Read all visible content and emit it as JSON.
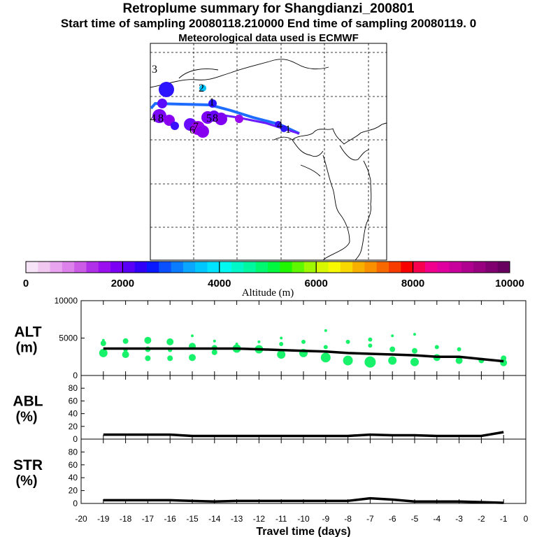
{
  "title": "Retroplume summary for Shangdianzi_200801",
  "subtitle": "Start time of sampling 20080118.210000     End time of sampling 20080119.     0",
  "met_note": "Meteorological data used is ECMWF",
  "map": {
    "labels": [
      "3",
      "2",
      "1",
      "4",
      "8",
      "6",
      "5",
      "7",
      "8",
      "4",
      "1"
    ],
    "track_colors": [
      "#1e6cff",
      "#6a1bff"
    ]
  },
  "colorbar": {
    "label": "Altitude (m)",
    "ticks": [
      "0",
      "2000",
      "4000",
      "6000",
      "8000",
      "10000"
    ],
    "colors": [
      "#f7e3f7",
      "#f0c8f0",
      "#e8a4ee",
      "#dc82ea",
      "#cc5ce6",
      "#b030ea",
      "#9b10ee",
      "#7c00f4",
      "#5a00f6",
      "#3000f8",
      "#0a18ff",
      "#0a50ff",
      "#0a7cff",
      "#0aa6ff",
      "#00c8ff",
      "#00e4ff",
      "#00f8f0",
      "#00f8c8",
      "#00f8a0",
      "#00f870",
      "#00f840",
      "#20f800",
      "#60f800",
      "#a0f800",
      "#d8f800",
      "#f8f800",
      "#f8d800",
      "#f8b000",
      "#f89000",
      "#f86800",
      "#f83c00",
      "#f80000",
      "#f80050",
      "#f0008c",
      "#e000a0",
      "#c8009c",
      "#b00090",
      "#980080",
      "#800070",
      "#680060"
    ]
  },
  "chart_data": [
    {
      "type": "line",
      "name": "ALT",
      "ylabel_line1": "ALT",
      "ylabel_line2": "(m)",
      "ylim": [
        0,
        10000
      ],
      "yticks": [
        "0",
        "5000",
        "10000"
      ],
      "xlim": [
        -20,
        0
      ],
      "x": [
        -19,
        -18,
        -17,
        -16,
        -15,
        -14,
        -13,
        -12,
        -11,
        -10,
        -9,
        -8,
        -7,
        -6,
        -5,
        -4,
        -3,
        -2,
        -1
      ],
      "values": [
        3600,
        3600,
        3600,
        3600,
        3600,
        3600,
        3600,
        3500,
        3400,
        3300,
        3200,
        3000,
        2900,
        2800,
        2700,
        2500,
        2500,
        2200,
        1900
      ],
      "scatter": {
        "color": "#18f26a",
        "points": [
          [
            -19,
            4300,
            4
          ],
          [
            -19,
            3000,
            6
          ],
          [
            -19,
            4700,
            2
          ],
          [
            -18,
            4600,
            4
          ],
          [
            -18,
            2800,
            5
          ],
          [
            -18,
            3400,
            3
          ],
          [
            -17,
            4700,
            5
          ],
          [
            -17,
            2300,
            4
          ],
          [
            -17,
            3500,
            4
          ],
          [
            -16,
            4500,
            5
          ],
          [
            -16,
            2300,
            4
          ],
          [
            -16,
            3400,
            3
          ],
          [
            -15,
            3900,
            5
          ],
          [
            -15,
            2400,
            5
          ],
          [
            -15,
            5300,
            2
          ],
          [
            -14,
            3700,
            4
          ],
          [
            -14,
            3100,
            4
          ],
          [
            -14,
            4600,
            2
          ],
          [
            -13,
            3600,
            6
          ],
          [
            -13,
            4200,
            2
          ],
          [
            -12,
            3500,
            6
          ],
          [
            -12,
            4500,
            2
          ],
          [
            -11,
            2800,
            6
          ],
          [
            -11,
            4200,
            3
          ],
          [
            -11,
            5000,
            2
          ],
          [
            -10,
            3000,
            6
          ],
          [
            -10,
            4500,
            3
          ],
          [
            -9,
            2400,
            7
          ],
          [
            -9,
            3800,
            3
          ],
          [
            -9,
            6000,
            2
          ],
          [
            -8,
            2000,
            7
          ],
          [
            -8,
            4500,
            3
          ],
          [
            -7,
            1800,
            8
          ],
          [
            -7,
            4800,
            3
          ],
          [
            -7,
            4000,
            3
          ],
          [
            -6,
            2000,
            6
          ],
          [
            -6,
            3500,
            4
          ],
          [
            -6,
            5300,
            2
          ],
          [
            -5,
            1800,
            6
          ],
          [
            -5,
            3300,
            4
          ],
          [
            -5,
            5500,
            2
          ],
          [
            -4,
            2400,
            5
          ],
          [
            -4,
            3800,
            3
          ],
          [
            -3,
            2000,
            5
          ],
          [
            -3,
            3500,
            3
          ],
          [
            -2,
            2000,
            4
          ],
          [
            -1,
            1700,
            5
          ],
          [
            -1,
            2300,
            4
          ]
        ]
      }
    },
    {
      "type": "line",
      "name": "ABL",
      "ylabel_line1": "ABL",
      "ylabel_line2": "(%)",
      "ylim": [
        0,
        100
      ],
      "yticks": [
        "0",
        "20",
        "40",
        "60",
        "80"
      ],
      "xlim": [
        -20,
        0
      ],
      "x": [
        -19,
        -18,
        -17,
        -16,
        -15,
        -14,
        -13,
        -12,
        -11,
        -10,
        -9,
        -8,
        -7,
        -6,
        -5,
        -4,
        -3,
        -2,
        -1
      ],
      "values": [
        7,
        7,
        7,
        7,
        5,
        5,
        5,
        5,
        5,
        5,
        5,
        5,
        7,
        6,
        6,
        5,
        5,
        5,
        11
      ]
    },
    {
      "type": "line",
      "name": "STR",
      "ylabel_line1": "STR",
      "ylabel_line2": "(%)",
      "ylim": [
        0,
        100
      ],
      "yticks": [
        "0",
        "20",
        "40",
        "60",
        "80"
      ],
      "xlim": [
        -20,
        0
      ],
      "x": [
        -19,
        -18,
        -17,
        -16,
        -15,
        -14,
        -13,
        -12,
        -11,
        -10,
        -9,
        -8,
        -7,
        -6,
        -5,
        -4,
        -3,
        -2,
        -1
      ],
      "values": [
        5,
        5,
        5,
        5,
        4,
        3,
        4,
        4,
        4,
        4,
        4,
        4,
        8,
        6,
        3,
        3,
        3,
        2,
        1
      ],
      "xlabel": "Travel time (days)",
      "xticks": [
        "-20",
        "-19",
        "-18",
        "-17",
        "-16",
        "-15",
        "-14",
        "-13",
        "-12",
        "-11",
        "-10",
        "-9",
        "-8",
        "-7",
        "-6",
        "-5",
        "-4",
        "-3",
        "-2",
        "-1",
        "0"
      ]
    }
  ]
}
